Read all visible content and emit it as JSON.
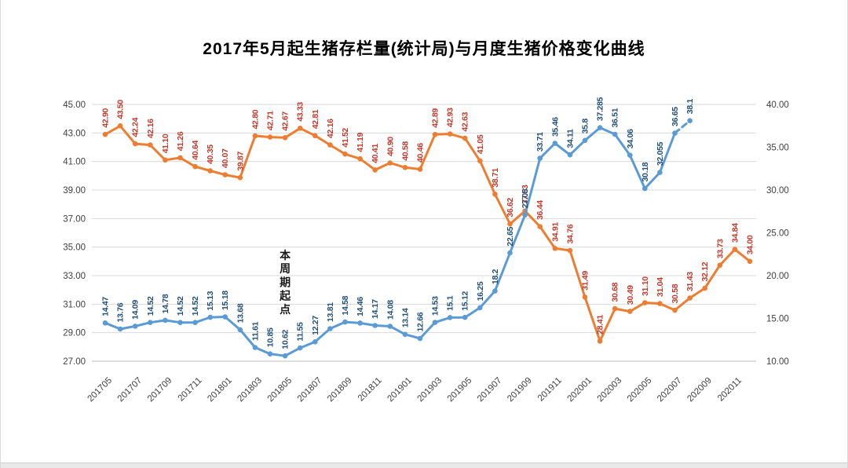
{
  "chart_data": {
    "type": "line",
    "title": "2017年5月起生猪存栏量(统计局)与月度生猪价格变化曲线",
    "grid": "horizontal",
    "legend": "none",
    "x_tick_labels": [
      "201705",
      "201707",
      "201709",
      "201711",
      "201801",
      "201803",
      "201805",
      "201807",
      "201809",
      "201811",
      "201901",
      "201903",
      "201905",
      "201907",
      "201909",
      "201911",
      "202001",
      "202003",
      "202005",
      "202007",
      "202009",
      "202011"
    ],
    "points_per_tick": 2,
    "total_points": 44,
    "left_axis": {
      "min": 27,
      "max": 45,
      "tick_labels": [
        "45.00",
        "43.00",
        "41.00",
        "39.00",
        "37.00",
        "35.00",
        "33.00",
        "31.00",
        "29.00",
        "27.00"
      ]
    },
    "right_axis": {
      "min": 10,
      "max": 40,
      "tick_labels": [
        "40.00",
        "35.00",
        "30.00",
        "25.00",
        "20.00",
        "15.00",
        "10.00"
      ]
    },
    "annotation": {
      "text": "本周期起点",
      "x_index": 12
    },
    "series": [
      {
        "name": "生猪存栏量(统计局)",
        "axis": "left",
        "color": "#ED7D31",
        "label_color": "#C0392B",
        "labels": [
          "42.90",
          "43.50",
          "42.24",
          "42.16",
          "41.10",
          "41.26",
          "40.64",
          "40.35",
          "40.07",
          "39.87",
          "42.80",
          "42.71",
          "42.67",
          "43.33",
          "42.81",
          "42.16",
          "41.52",
          "41.19",
          "40.41",
          "40.90",
          "40.58",
          "40.46",
          "42.89",
          "42.93",
          "42.63",
          "41.05",
          "38.71",
          "36.62",
          "37.53",
          "36.44",
          "34.91",
          "34.76",
          "31.49",
          "28.41",
          "30.68",
          "30.49",
          "31.10",
          "31.04",
          "30.58",
          "31.43",
          "32.12",
          "33.73",
          "34.84",
          "34.00"
        ]
      },
      {
        "name": "月度生猪价格",
        "axis": "right",
        "color": "#5B9BD5",
        "label_color": "#1F4E79",
        "dashed_from_index": 38,
        "labels": [
          "14.47",
          "13.76",
          "14.09",
          "14.52",
          "14.78",
          "14.52",
          "14.52",
          "15.13",
          "15.18",
          "13.68",
          "11.61",
          "10.85",
          "10.62",
          "11.55",
          "12.27",
          "13.81",
          "14.58",
          "14.46",
          "14.17",
          "14.08",
          "13.14",
          "12.66",
          "14.53",
          "15.1",
          "15.12",
          "16.25",
          "18.2",
          "22.65",
          "27.08",
          "33.71",
          "35.46",
          "34.11",
          "35.8",
          "37.285",
          "36.51",
          "34.06",
          "30.18",
          "32.055",
          "36.65",
          "38.1"
        ]
      }
    ],
    "colors": {
      "gridline": "#d9d9d9",
      "axis_line": "#bfbfbf",
      "axis_label": "#404040",
      "annotation": "#1a1a1a"
    }
  }
}
